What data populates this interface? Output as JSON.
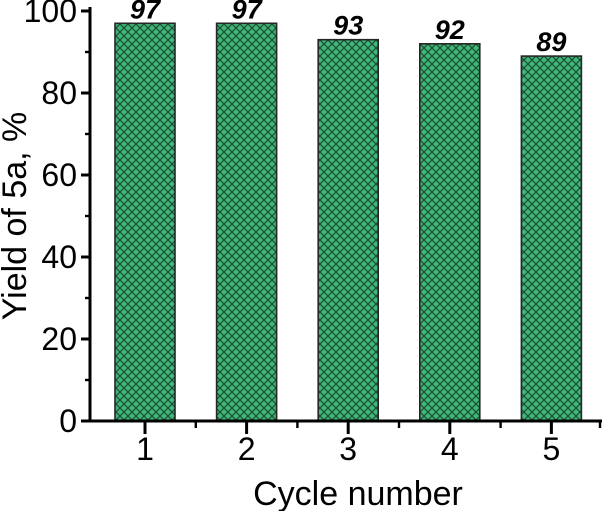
{
  "chart_data": {
    "type": "bar",
    "title": "",
    "categories": [
      "1",
      "2",
      "3",
      "4",
      "5"
    ],
    "values": [
      97,
      97,
      93,
      92,
      89
    ],
    "bar_labels": [
      "97",
      "97",
      "93",
      "92",
      "89"
    ],
    "xlabel": "Cycle number",
    "ylabel": "Yield of 5a, %",
    "ylim": [
      0,
      100
    ],
    "yticks_major": [
      0,
      20,
      40,
      60,
      80,
      100
    ],
    "yticks_minor": [
      10,
      30,
      50,
      70,
      90
    ],
    "grid": false,
    "legend": null,
    "bar_style": "diagonal-crosshatch",
    "colors": {
      "bar_fill": "#3db878",
      "hatch_line": "#1f4a33",
      "bar_edge": "#262626",
      "axis": "#000000",
      "text": "#000000",
      "background": "#ffffff"
    }
  }
}
